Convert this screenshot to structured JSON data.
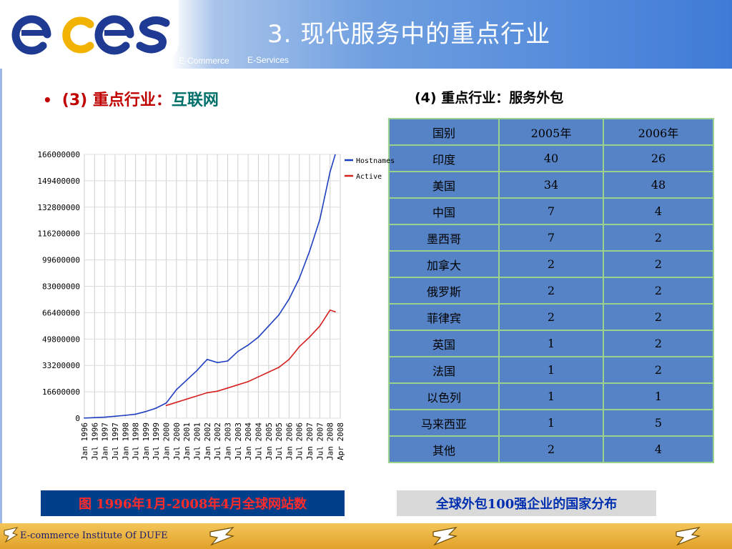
{
  "header": {
    "logo_text": "eces",
    "subtitle_left": "E-Commerce",
    "subtitle_right": "E-Services",
    "slide_title": "3. 现代服务中的重点行业"
  },
  "left_section": {
    "bullet": "•",
    "number": "(3)",
    "label": "重点行业：",
    "word": "互联网",
    "caption": "图 1996年1月-2008年4月全球网站数"
  },
  "right_section": {
    "title": "(4) 重点行业：服务外包",
    "caption": "全球外包100强企业的国家分布",
    "columns": [
      "国别",
      "2005年",
      "2006年"
    ],
    "rows": [
      [
        "印度",
        "40",
        "26"
      ],
      [
        "美国",
        "34",
        "48"
      ],
      [
        "中国",
        "7",
        "4"
      ],
      [
        "墨西哥",
        "7",
        "2"
      ],
      [
        "加拿大",
        "2",
        "2"
      ],
      [
        "俄罗斯",
        "2",
        "2"
      ],
      [
        "菲律宾",
        "2",
        "2"
      ],
      [
        "英国",
        "1",
        "2"
      ],
      [
        "法国",
        "1",
        "2"
      ],
      [
        "以色列",
        "1",
        "1"
      ],
      [
        "马来西亚",
        "1",
        "5"
      ],
      [
        "其他",
        "2",
        "4"
      ]
    ]
  },
  "footer": {
    "text": "E-commerce Institute Of DUFE",
    "icon": "folded-arrow-icon"
  },
  "colors": {
    "header_blue": "#3f7bd6",
    "hostnames": "#1f3fbf",
    "active": "#d62020",
    "table_bg": "#5683c6",
    "table_border": "#9ad18e",
    "footer_gold": "#e8b040"
  },
  "chart_data": {
    "type": "line",
    "title": "",
    "xlabel": "",
    "ylabel": "",
    "ylim": [
      0,
      166000000
    ],
    "yticks": [
      "0",
      "16600000",
      "33200000",
      "49800000",
      "66400000",
      "83000000",
      "99600000",
      "116200000",
      "132800000",
      "149400000",
      "166000000"
    ],
    "xticks": [
      "Jan 1996",
      "Jul 1996",
      "Jan 1997",
      "Jul 1997",
      "Jan 1998",
      "Jul 1998",
      "Jan 1999",
      "Jul 1999",
      "Jan 2000",
      "Jul 2000",
      "Jan 2001",
      "Jul 2001",
      "Jan 2002",
      "Jul 2002",
      "Jan 2003",
      "Jul 2003",
      "Jan 2004",
      "Jul 2004",
      "Jan 2005",
      "Jul 2005",
      "Jan 2006",
      "Jul 2006",
      "Jan 2007",
      "Jul 2007",
      "Jan 2008",
      "Apr 2008"
    ],
    "legend_position": "top-right",
    "grid": true,
    "series": [
      {
        "name": "Hostnames",
        "color": "#1f3fbf",
        "x": [
          "1996-01",
          "1996-07",
          "1997-01",
          "1997-07",
          "1998-01",
          "1998-07",
          "1999-01",
          "1999-07",
          "2000-01",
          "2000-07",
          "2001-01",
          "2001-07",
          "2002-01",
          "2002-07",
          "2003-01",
          "2003-07",
          "2004-01",
          "2004-07",
          "2005-01",
          "2005-07",
          "2006-01",
          "2006-07",
          "2007-01",
          "2007-07",
          "2008-01",
          "2008-04"
        ],
        "y": [
          100000,
          340000,
          650000,
          1200000,
          1800000,
          2500000,
          4200000,
          6300000,
          9600000,
          18000000,
          24000000,
          30000000,
          37000000,
          35000000,
          36000000,
          42000000,
          46000000,
          51000000,
          58000000,
          65000000,
          75000000,
          88000000,
          105000000,
          125000000,
          155000000,
          165700000
        ]
      },
      {
        "name": "Active",
        "color": "#d62020",
        "x": [
          "2000-01",
          "2000-07",
          "2001-01",
          "2001-07",
          "2002-01",
          "2002-07",
          "2003-01",
          "2003-07",
          "2004-01",
          "2004-07",
          "2005-01",
          "2005-07",
          "2006-01",
          "2006-07",
          "2007-01",
          "2007-07",
          "2008-01",
          "2008-04"
        ],
        "y": [
          8000000,
          10000000,
          12000000,
          14000000,
          16000000,
          17000000,
          19000000,
          21000000,
          23000000,
          26000000,
          29000000,
          32000000,
          37000000,
          45000000,
          51000000,
          58000000,
          68000000,
          67000000
        ]
      }
    ]
  }
}
